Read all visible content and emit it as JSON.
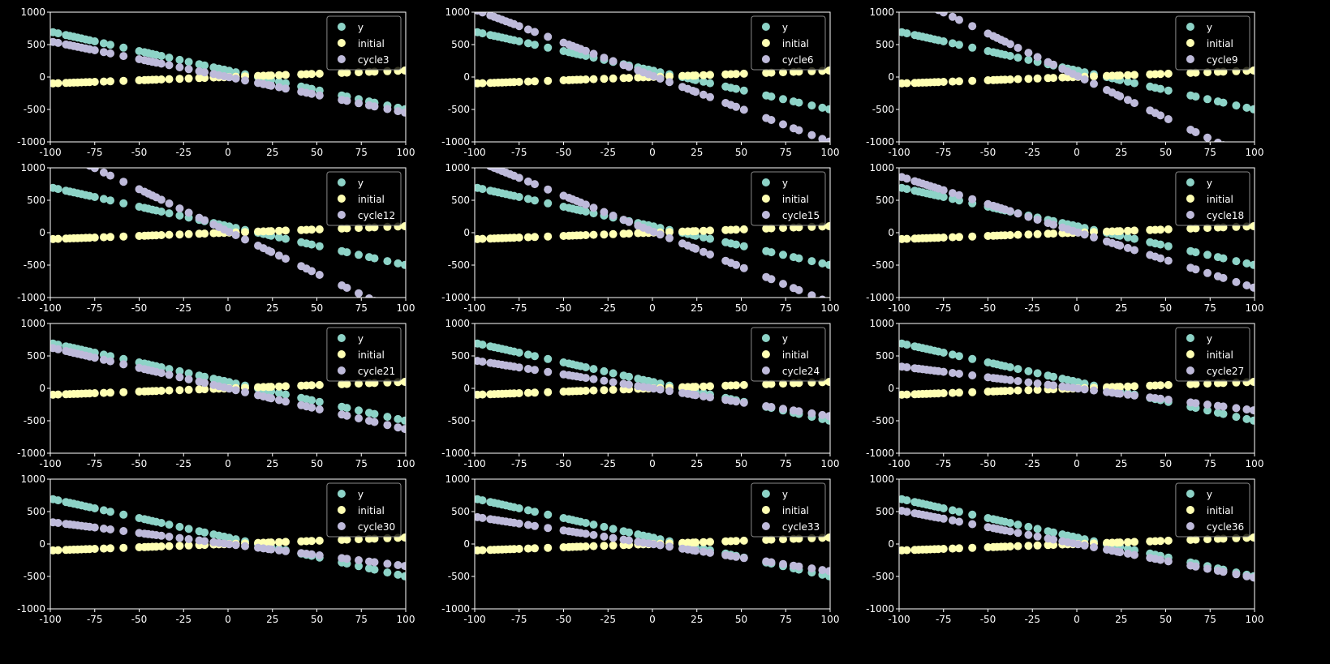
{
  "chart_data": {
    "type": "scatter",
    "layout": "4x3 grid of subplots",
    "colors": {
      "y": "#8dd3c7",
      "initial": "#ffffb3",
      "cycle": "#bebada",
      "background": "#000000",
      "axes": "#ffffff"
    },
    "xlim": [
      -100,
      100
    ],
    "ylim": [
      -1000,
      1000
    ],
    "xticks": [
      "-100",
      "-75",
      "-50",
      "-25",
      "0",
      "25",
      "50",
      "75",
      "100"
    ],
    "yticks": [
      "-1000",
      "-500",
      "0",
      "500",
      "1000"
    ],
    "legend_placement": "top-right",
    "x": [
      -98.5,
      -95.6,
      -91.2,
      -89,
      -86.8,
      -84.6,
      -82.4,
      -80.1,
      -77.9,
      -75,
      -69.9,
      -66.2,
      -58.8,
      -50,
      -47,
      -44.9,
      -42.6,
      -40.4,
      -37.5,
      -33.1,
      -27.2,
      -22.1,
      -16.2,
      -13.2,
      -8.1,
      -5.1,
      -2.2,
      0.7,
      4.4,
      9.6,
      16.9,
      19.9,
      22.8,
      24.3,
      28.7,
      32.4,
      41.2,
      44.1,
      47.1,
      51.5,
      64,
      66.9,
      73.5,
      79.4,
      82.4,
      89.7,
      95.6,
      99.5
    ],
    "series_model": "value = slope * x + intercept (per series, evaluated at shared x)",
    "base_series": [
      {
        "name": "y",
        "slope": -6,
        "intercept": 100
      },
      {
        "name": "initial",
        "slope": 1,
        "intercept": 0
      }
    ],
    "panels": [
      {
        "name": "cycle3",
        "slope": -5.5,
        "intercept": 0
      },
      {
        "name": "cycle6",
        "slope": -10.2,
        "intercept": 20
      },
      {
        "name": "cycle9",
        "slope": -13,
        "intercept": 20
      },
      {
        "name": "cycle12",
        "slope": -13,
        "intercept": 20
      },
      {
        "name": "cycle15",
        "slope": -11,
        "intercept": 20
      },
      {
        "name": "cycle18",
        "slope": -8.6,
        "intercept": 10
      },
      {
        "name": "cycle21",
        "slope": -6.3,
        "intercept": 0
      },
      {
        "name": "cycle24",
        "slope": -4.3,
        "intercept": 0
      },
      {
        "name": "cycle27",
        "slope": -3.4,
        "intercept": 0
      },
      {
        "name": "cycle30",
        "slope": -3.4,
        "intercept": 0
      },
      {
        "name": "cycle33",
        "slope": -4.2,
        "intercept": 0
      },
      {
        "name": "cycle36",
        "slope": -5.2,
        "intercept": 0
      }
    ]
  }
}
